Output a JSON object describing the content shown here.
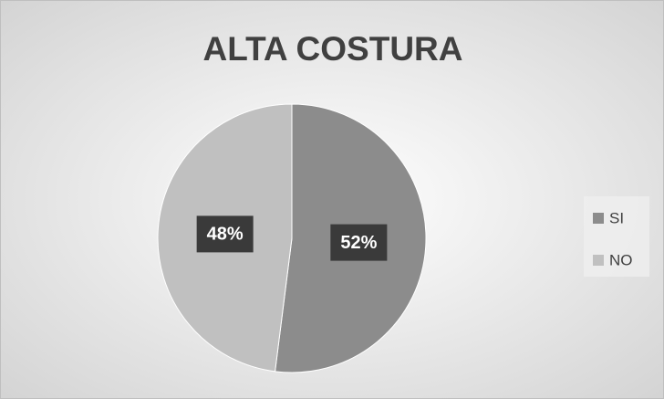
{
  "chart_data": {
    "type": "pie",
    "title": "ALTA COSTURA",
    "categories": [
      "SI",
      "NO"
    ],
    "values": [
      52,
      48
    ],
    "value_labels": [
      "52%",
      "48%"
    ],
    "colors": [
      "#8c8c8c",
      "#c0c0c0"
    ],
    "legend": "right"
  }
}
